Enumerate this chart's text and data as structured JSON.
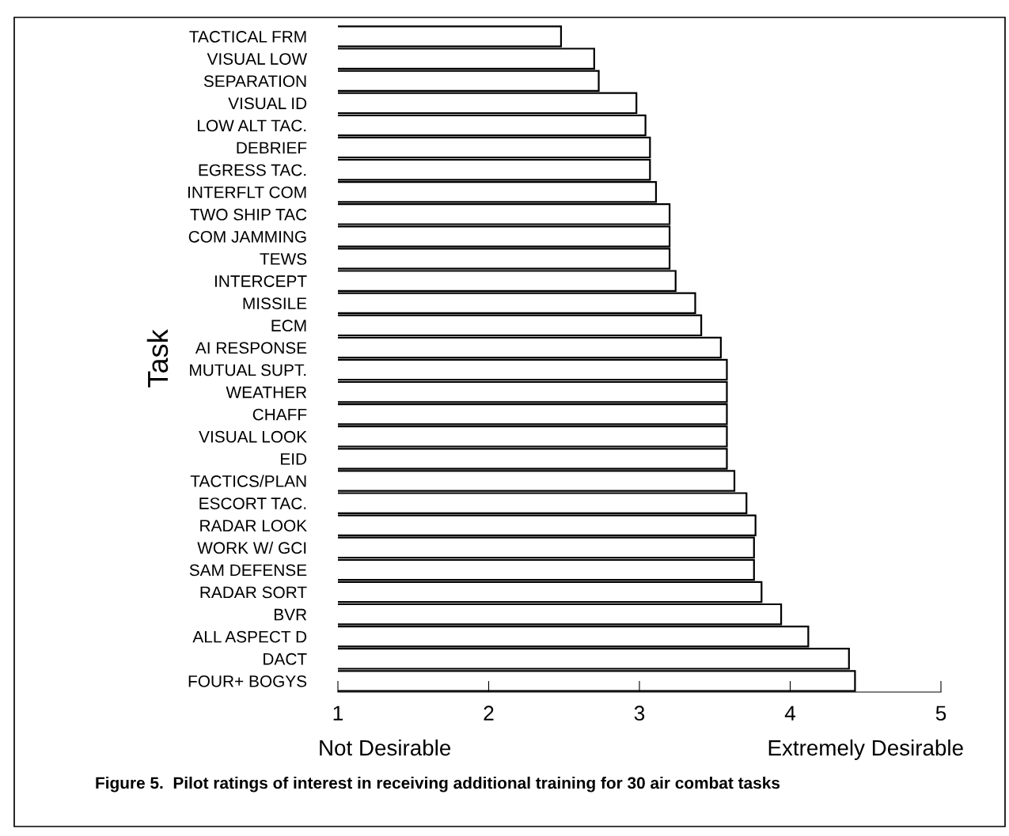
{
  "chart_data": {
    "type": "bar",
    "orientation": "horizontal",
    "ylabel": "Task",
    "categories": [
      "TACTICAL FRM",
      "VISUAL LOW",
      "SEPARATION",
      "VISUAL ID",
      "LOW ALT TAC.",
      "DEBRIEF",
      "EGRESS TAC.",
      "INTERFLT COM",
      "TWO SHIP TAC",
      "COM JAMMING",
      "TEWS",
      "INTERCEPT",
      "MISSILE",
      "ECM",
      "AI RESPONSE",
      "MUTUAL SUPT.",
      "WEATHER",
      "CHAFF",
      "VISUAL LOOK",
      "EID",
      "TACTICS/PLAN",
      "ESCORT TAC.",
      "RADAR LOOK",
      "WORK W/ GCI",
      "SAM DEFENSE",
      "RADAR SORT",
      "BVR",
      "ALL ASPECT D",
      "DACT",
      "FOUR+ BOGYS"
    ],
    "values": [
      2.48,
      2.7,
      2.73,
      2.98,
      3.04,
      3.07,
      3.07,
      3.11,
      3.2,
      3.2,
      3.2,
      3.24,
      3.37,
      3.41,
      3.54,
      3.58,
      3.58,
      3.58,
      3.58,
      3.58,
      3.63,
      3.71,
      3.77,
      3.76,
      3.76,
      3.81,
      3.94,
      4.12,
      4.39,
      4.43
    ],
    "color": "#ffffff",
    "xlim": [
      1,
      5
    ],
    "xticks": [
      1,
      2,
      3,
      4,
      5
    ],
    "grid": false,
    "annotations": [
      "Not Desirable",
      "Extremely Desirable",
      "Figure 5.  Pilot ratings of interest in receiving additional training for 30 air combat tasks"
    ]
  }
}
